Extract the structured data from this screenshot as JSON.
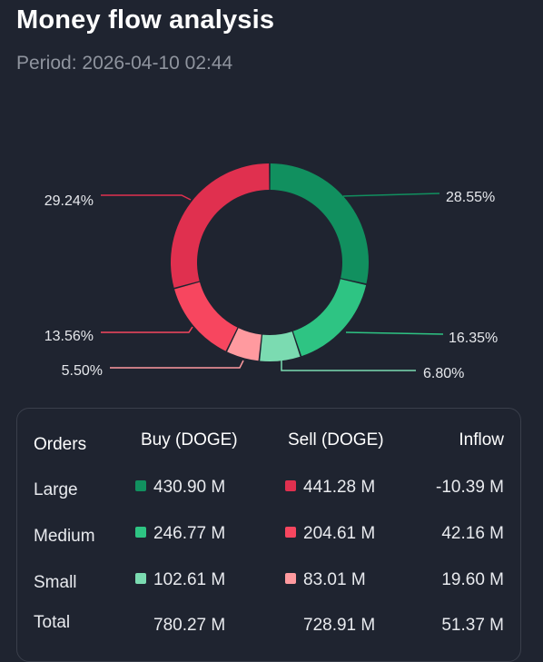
{
  "header": {
    "title": "Money flow analysis",
    "period_label": "Period:",
    "period_value": "2026-04-10 02:44"
  },
  "colors": {
    "background": "#1f2430",
    "buy_large": "#11905f",
    "buy_medium": "#2ec483",
    "buy_small": "#7bdbb1",
    "sell_large": "#e0304f",
    "sell_medium": "#f7465f",
    "sell_small": "#ff9a9f"
  },
  "chart_data": {
    "type": "donut",
    "slices": [
      {
        "label": "28.55%",
        "value": 28.55,
        "group": "buy_large"
      },
      {
        "label": "16.35%",
        "value": 16.35,
        "group": "buy_medium"
      },
      {
        "label": "6.80%",
        "value": 6.8,
        "group": "buy_small"
      },
      {
        "label": "5.50%",
        "value": 5.5,
        "group": "sell_small"
      },
      {
        "label": "13.56%",
        "value": 13.56,
        "group": "sell_medium"
      },
      {
        "label": "29.24%",
        "value": 29.24,
        "group": "sell_large"
      }
    ]
  },
  "table": {
    "headers": {
      "orders": "Orders",
      "buy": "Buy (DOGE)",
      "sell": "Sell (DOGE)",
      "inflow": "Inflow"
    },
    "rows": [
      {
        "label": "Large",
        "buy": "430.90 M",
        "sell": "441.28 M",
        "inflow": "-10.39 M"
      },
      {
        "label": "Medium",
        "buy": "246.77 M",
        "sell": "204.61 M",
        "inflow": "42.16 M"
      },
      {
        "label": "Small",
        "buy": "102.61 M",
        "sell": "83.01 M",
        "inflow": "19.60 M"
      },
      {
        "label": "Total",
        "buy": "780.27 M",
        "sell": "728.91 M",
        "inflow": "51.37 M"
      }
    ]
  }
}
